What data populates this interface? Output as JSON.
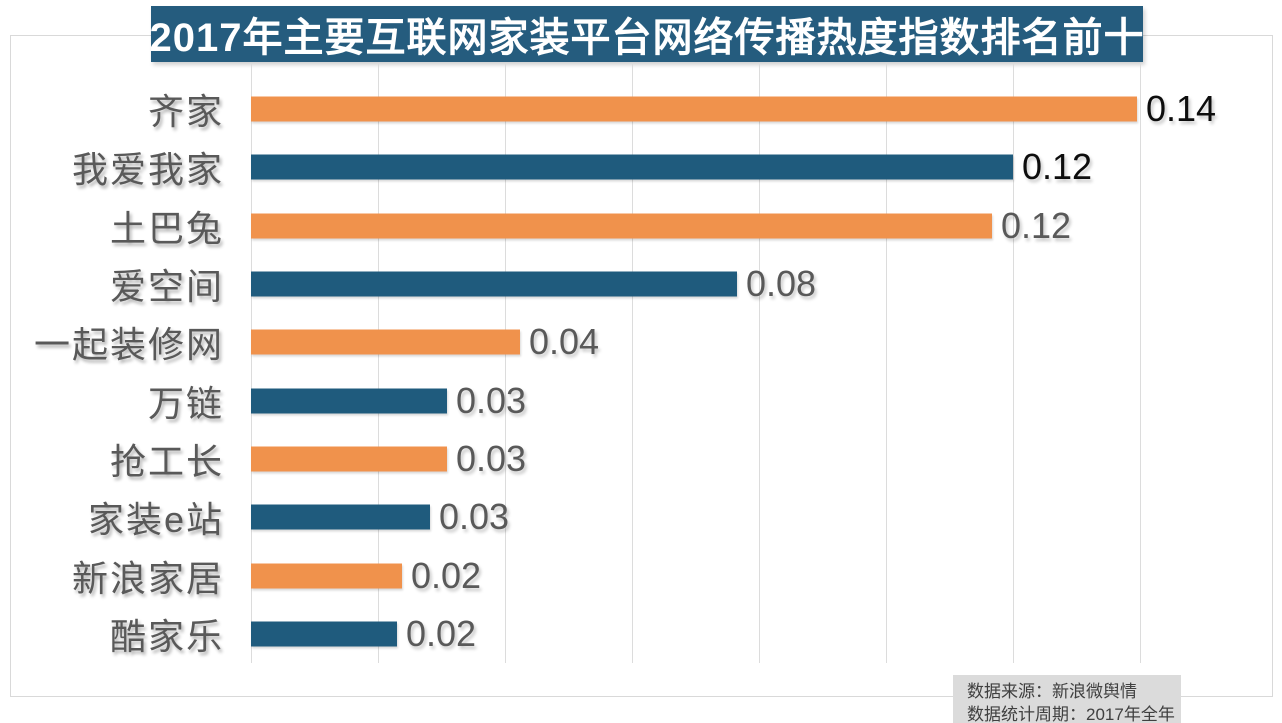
{
  "page": {
    "background": "#FFFFFF"
  },
  "title_banner": {
    "text": "2017年主要互联网家装平台网络传播热度指数排名前十",
    "bg": "#255C7E",
    "text_color": "#FFFFFF"
  },
  "source_note": {
    "line1": "数据来源：新浪微舆情",
    "line2": "数据统计周期：2017年全年",
    "bg": "#DBDBDB",
    "text_color": "#404040"
  },
  "colors": {
    "orange": "#F0924C",
    "blue": "#1F5B7D",
    "grid": "#DCDCDC",
    "frame_border": "#D9D9D9",
    "category_label": "#595959",
    "value_dark": "#0D0D0D",
    "value_gray": "#595959"
  },
  "chart_data": {
    "type": "bar",
    "orientation": "horizontal",
    "title": "2017年主要互联网家装平台网络传播热度指数排名前十",
    "categories": [
      "齐家",
      "我爱我家",
      "土巴兔",
      "爱空间",
      "一起装修网",
      "万链",
      "抢工长",
      "家装e站",
      "新浪家居",
      "酷家乐"
    ],
    "values": [
      0.14,
      0.12,
      0.12,
      0.08,
      0.04,
      0.03,
      0.03,
      0.03,
      0.02,
      0.02
    ],
    "value_labels": [
      "0.14",
      "0.12",
      "0.12",
      "0.08",
      "0.04",
      "0.03",
      "0.03",
      "0.03",
      "0.02",
      "0.02"
    ],
    "values_precise": [
      0.1395,
      0.12,
      0.1167,
      0.0765,
      0.0424,
      0.0309,
      0.0309,
      0.0282,
      0.0238,
      0.023
    ],
    "xlabel": "",
    "ylabel": "",
    "xlim": [
      0,
      0.161
    ],
    "grid_step": 0.02,
    "grid_max": 0.14,
    "gridlines": "vertical",
    "x_axis_tick_labels": "none",
    "legend": "none",
    "data_labels": "outside_end",
    "bar_color_pattern": [
      "orange",
      "blue"
    ],
    "value_label_emphasis": [
      "dark",
      "dark",
      "gray",
      "gray",
      "gray",
      "gray",
      "gray",
      "gray",
      "gray",
      "gray"
    ]
  }
}
